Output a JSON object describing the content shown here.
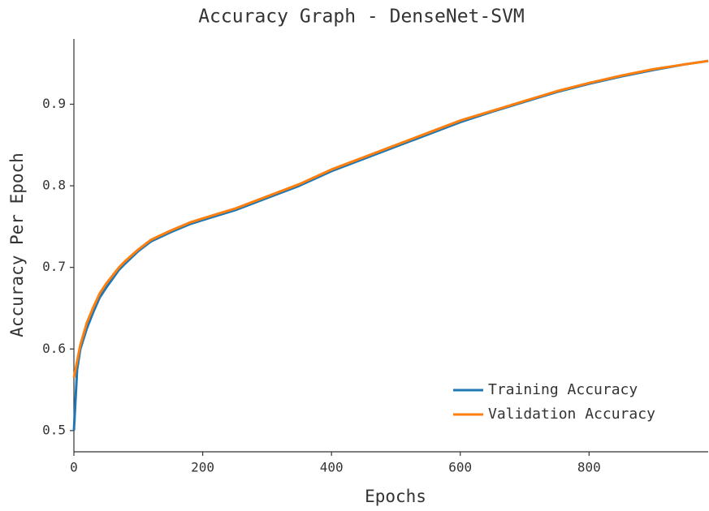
{
  "chart_data": {
    "type": "line",
    "title": "Accuracy Graph - DenseNet-SVM",
    "x_label": "Epochs",
    "y_label": "Accuracy Per Epoch",
    "x": [
      0,
      5,
      10,
      20,
      30,
      40,
      50,
      60,
      70,
      80,
      100,
      120,
      150,
      180,
      200,
      250,
      300,
      350,
      400,
      450,
      500,
      550,
      600,
      650,
      700,
      750,
      800,
      850,
      900,
      950,
      985
    ],
    "series": [
      {
        "name": "Training Accuracy",
        "color": "#1f77b4",
        "values": [
          0.5,
          0.575,
          0.6,
          0.625,
          0.645,
          0.663,
          0.675,
          0.686,
          0.697,
          0.705,
          0.72,
          0.732,
          0.743,
          0.753,
          0.758,
          0.77,
          0.785,
          0.8,
          0.818,
          0.833,
          0.848,
          0.863,
          0.878,
          0.891,
          0.903,
          0.915,
          0.925,
          0.934,
          0.942,
          0.949,
          0.953
        ]
      },
      {
        "name": "Validation Accuracy",
        "color": "#ff7f0e",
        "values": [
          0.565,
          0.585,
          0.605,
          0.632,
          0.651,
          0.668,
          0.68,
          0.69,
          0.7,
          0.708,
          0.722,
          0.734,
          0.745,
          0.755,
          0.76,
          0.772,
          0.787,
          0.802,
          0.82,
          0.835,
          0.85,
          0.865,
          0.88,
          0.892,
          0.904,
          0.916,
          0.926,
          0.935,
          0.943,
          0.949,
          0.953
        ]
      }
    ],
    "xlim": [
      0,
      985
    ],
    "ylim": [
      0.474,
      0.98
    ],
    "xticks": [
      0,
      200,
      400,
      600,
      800
    ],
    "yticks": [
      0.5,
      0.6,
      0.7,
      0.8,
      0.9
    ],
    "grid": false,
    "legend": "lower right"
  }
}
